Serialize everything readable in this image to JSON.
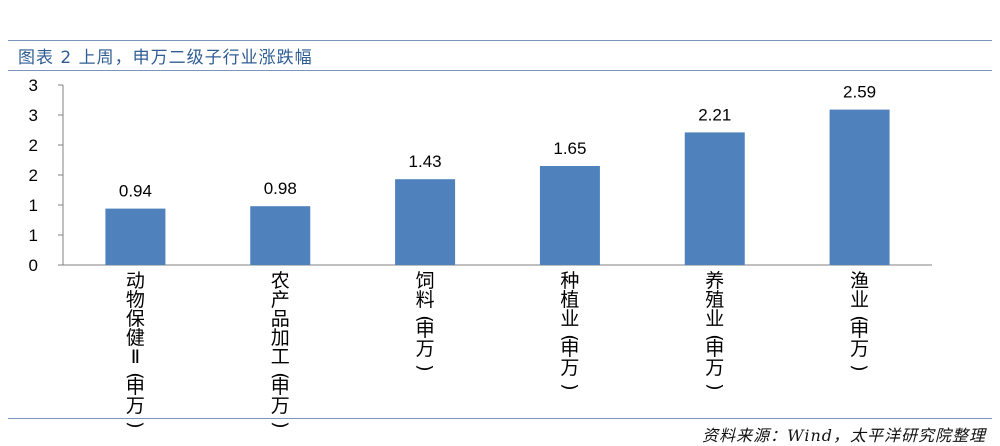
{
  "header_text": "",
  "title": "图表 2 上周，申万二级子行业涨跌幅",
  "source": "资料来源：Wind，太平洋研究院整理",
  "chart_data": {
    "type": "bar",
    "categories": [
      "动物保健Ⅱ(申万)",
      "农产品加工(申万)",
      "饲料(申万)",
      "种植业(申万)",
      "养殖业(申万)",
      "渔业(申万)"
    ],
    "values": [
      0.94,
      0.98,
      1.43,
      1.65,
      2.21,
      2.59
    ],
    "data_labels": [
      "0.94",
      "0.98",
      "1.43",
      "1.65",
      "2.21",
      "2.59"
    ],
    "ytick_labels": [
      "0",
      "1",
      "1",
      "2",
      "2",
      "3",
      "3"
    ],
    "ylim": [
      0,
      3
    ],
    "bar_color": "#4f81bd",
    "grid": false,
    "xlabel": "",
    "ylabel": ""
  }
}
